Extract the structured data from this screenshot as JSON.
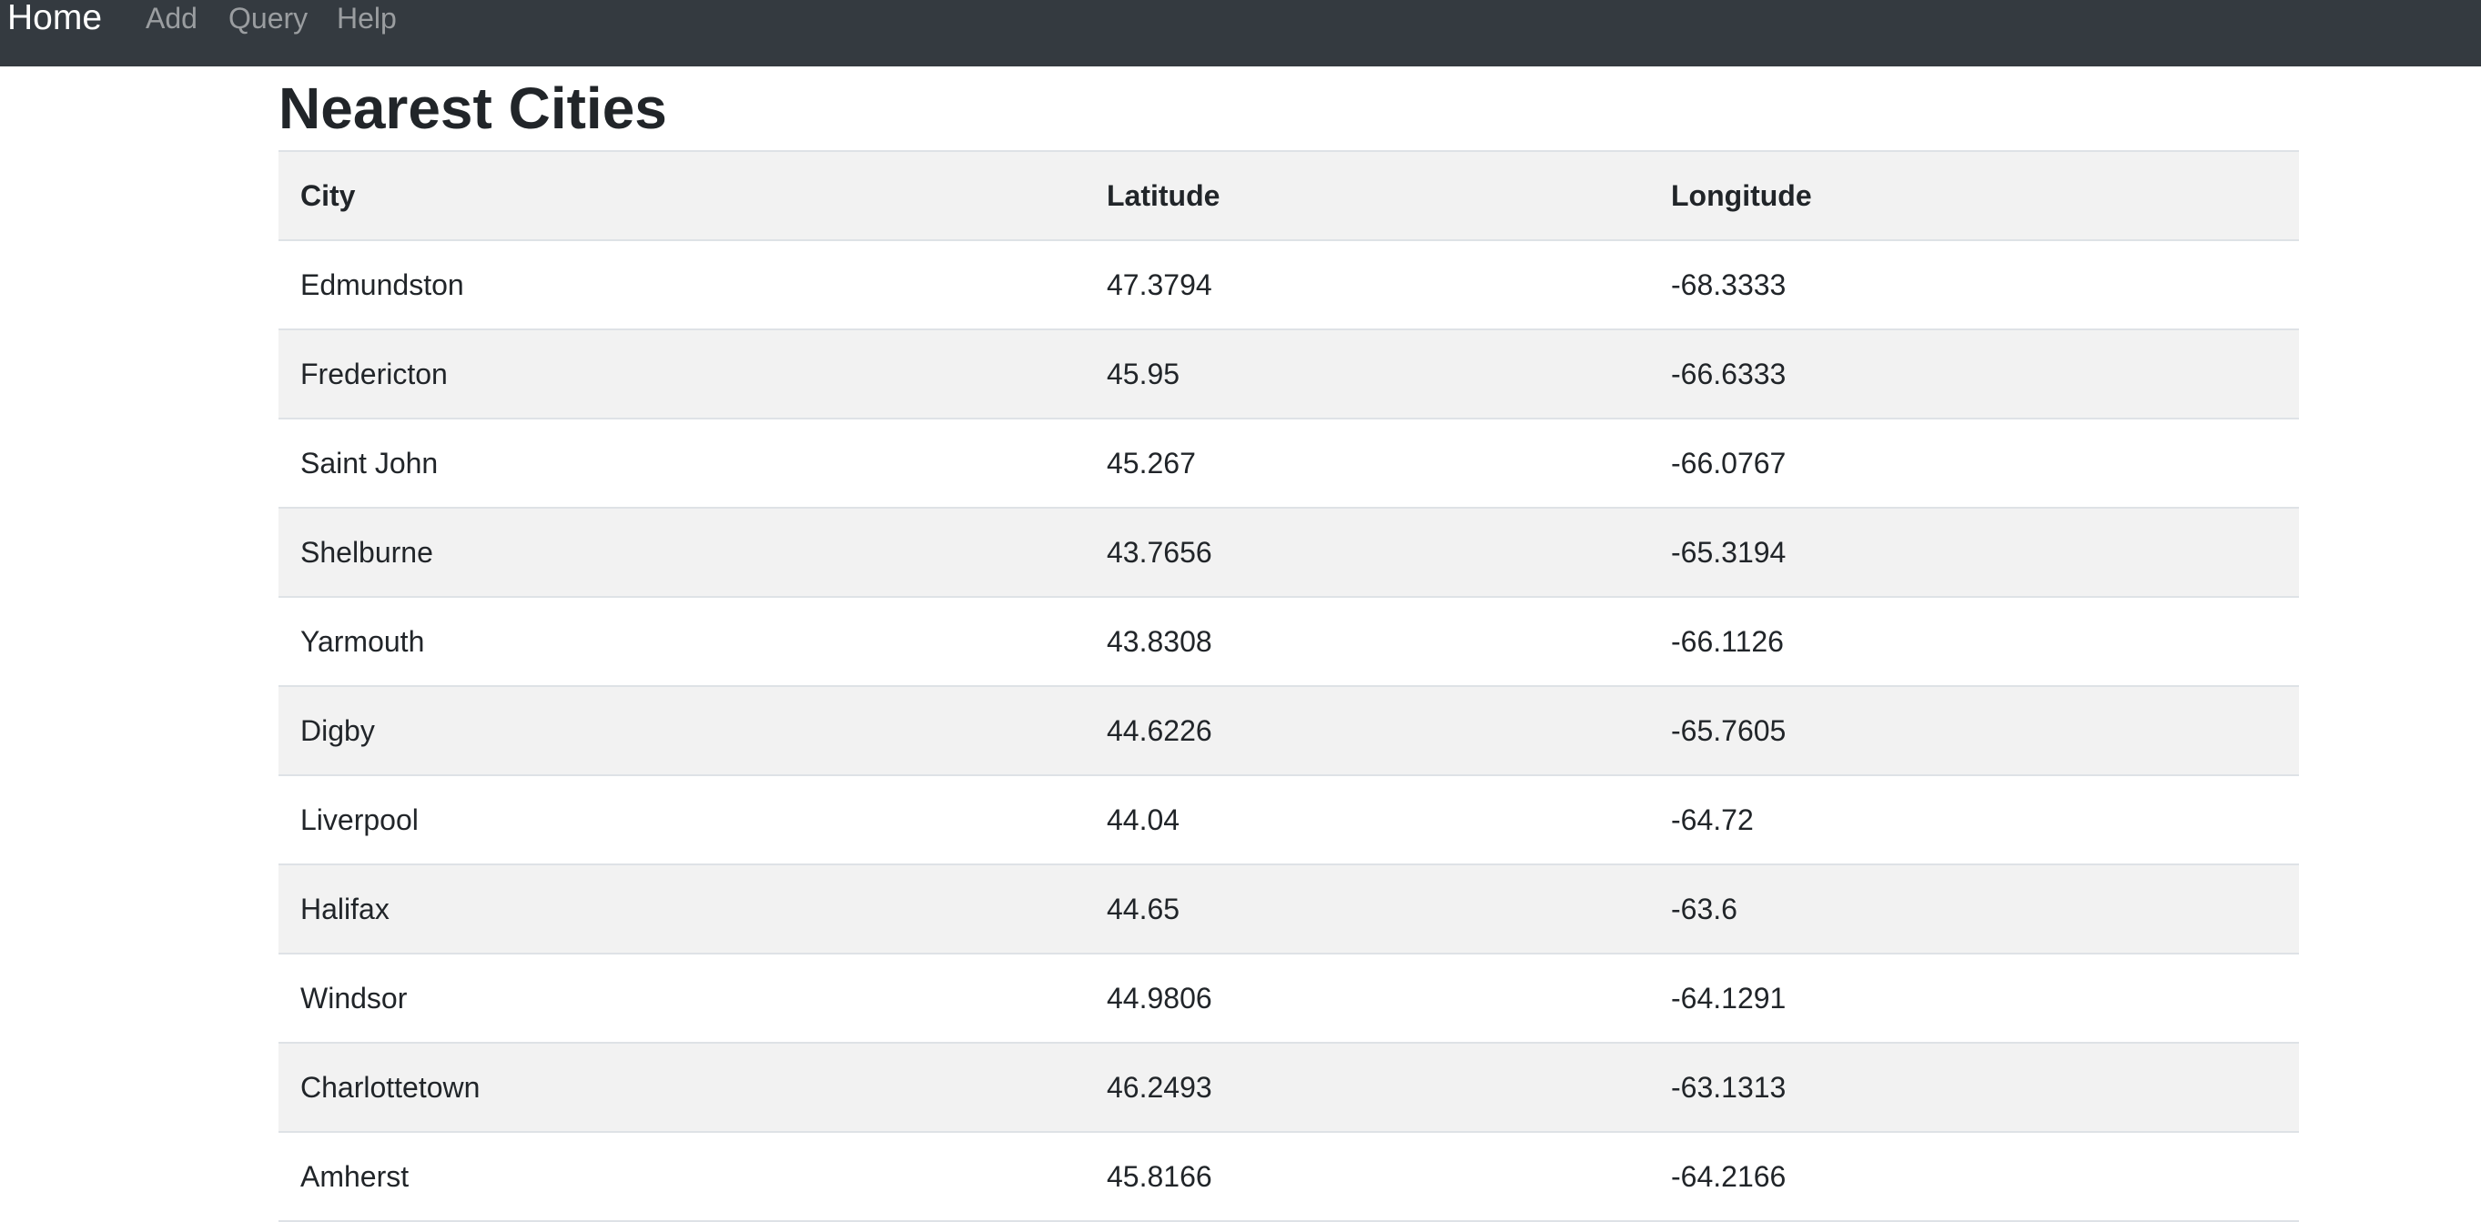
{
  "navbar": {
    "brand": "Home",
    "links": [
      "Add",
      "Query",
      "Help"
    ]
  },
  "page": {
    "title": "Nearest Cities"
  },
  "table": {
    "headers": [
      "City",
      "Latitude",
      "Longitude"
    ],
    "rows": [
      [
        "Edmundston",
        "47.3794",
        "-68.3333"
      ],
      [
        "Fredericton",
        "45.95",
        "-66.6333"
      ],
      [
        "Saint John",
        "45.267",
        "-66.0767"
      ],
      [
        "Shelburne",
        "43.7656",
        "-65.3194"
      ],
      [
        "Yarmouth",
        "43.8308",
        "-66.1126"
      ],
      [
        "Digby",
        "44.6226",
        "-65.7605"
      ],
      [
        "Liverpool",
        "44.04",
        "-64.72"
      ],
      [
        "Halifax",
        "44.65",
        "-63.6"
      ],
      [
        "Windsor",
        "44.9806",
        "-64.1291"
      ],
      [
        "Charlottetown",
        "46.2493",
        "-63.1313"
      ],
      [
        "Amherst",
        "45.8166",
        "-64.2166"
      ]
    ]
  },
  "colors": {
    "navbar_bg": "#343a40",
    "stripe_bg": "#f2f2f2",
    "border": "#dee2e6",
    "text": "#212529"
  }
}
